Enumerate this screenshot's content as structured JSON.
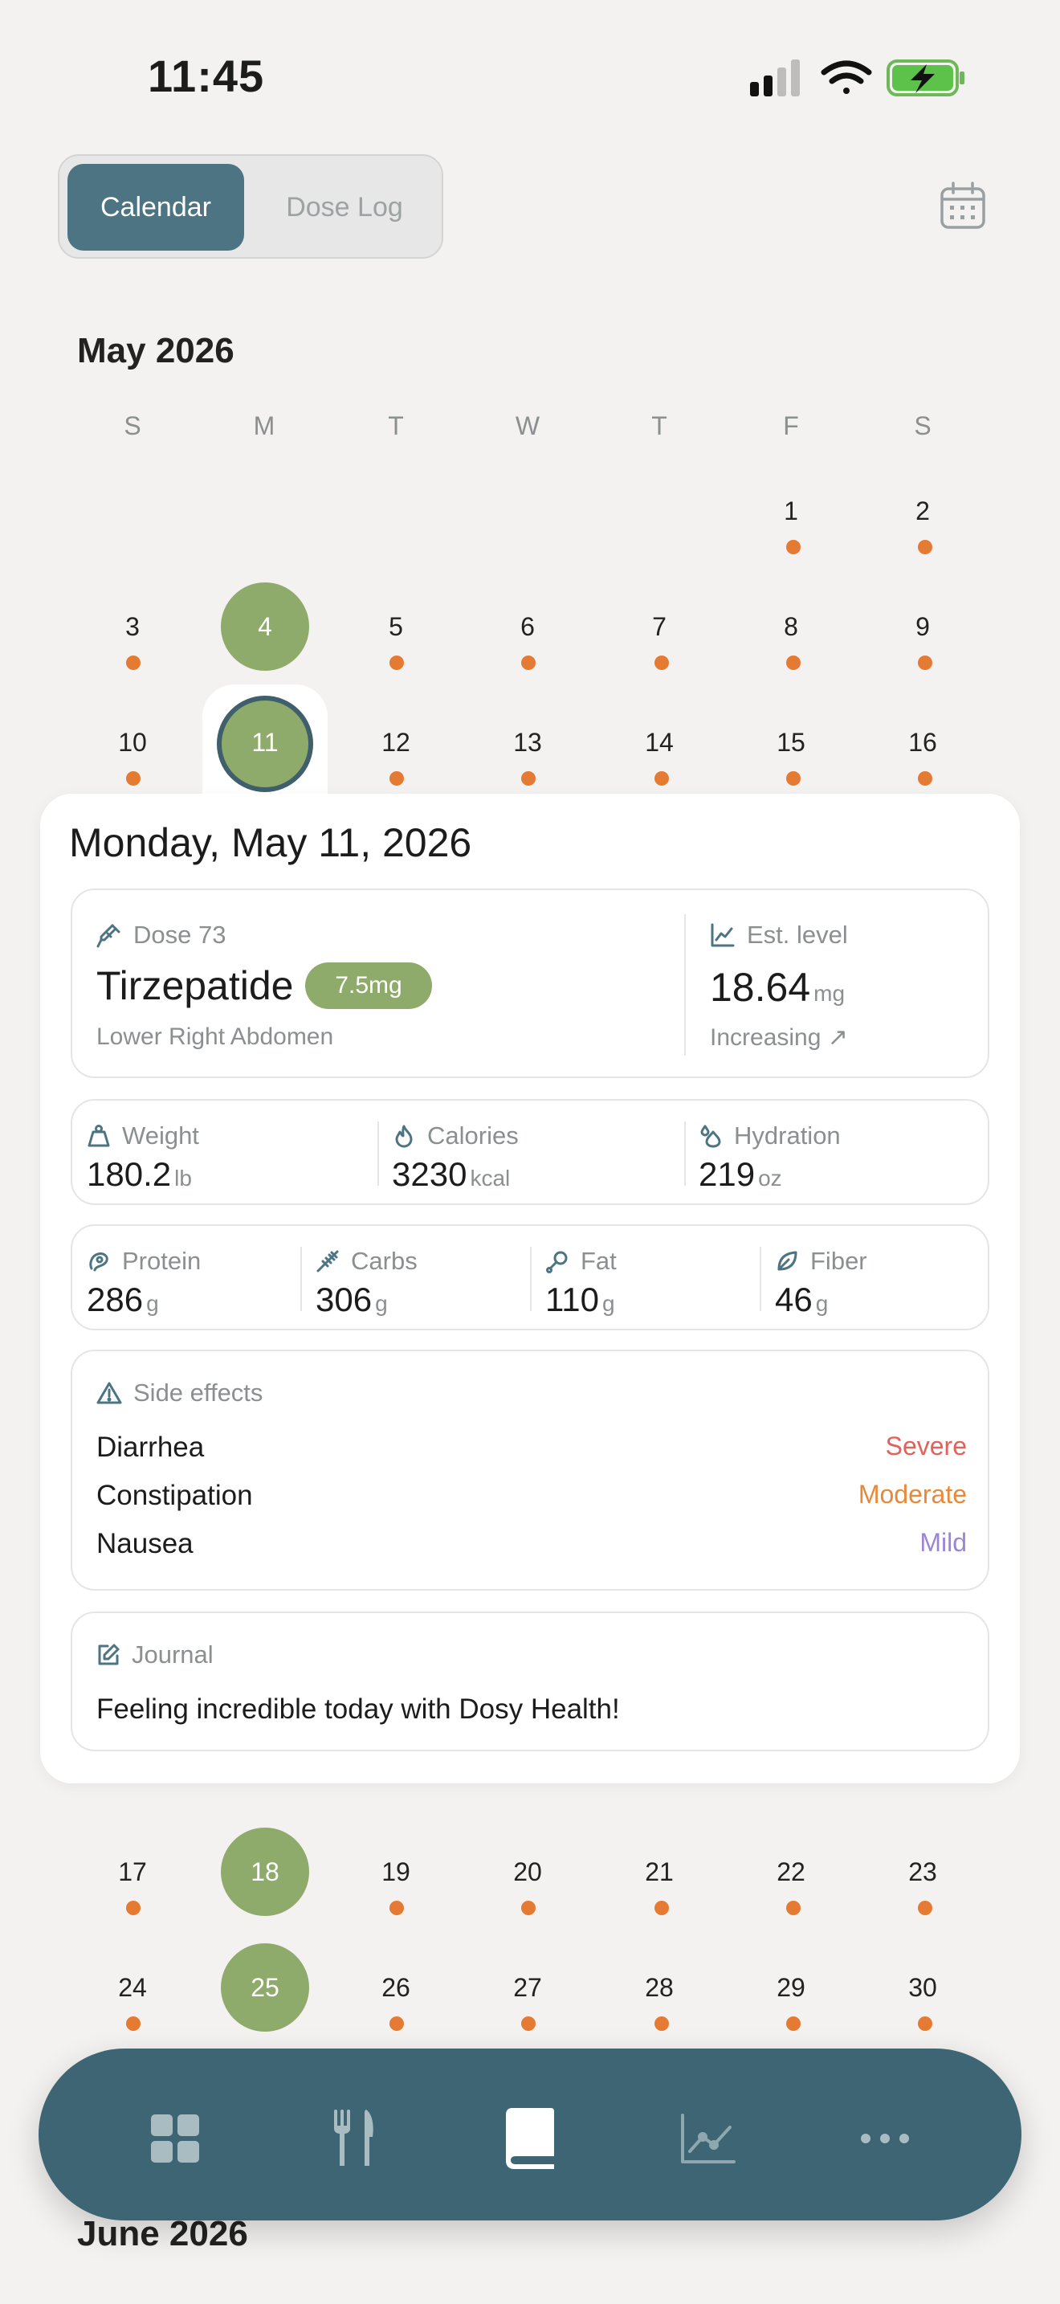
{
  "status_bar": {
    "time": "11:45"
  },
  "segmented": {
    "calendar": "Calendar",
    "dose_log": "Dose Log"
  },
  "month": {
    "title": "May 2026",
    "weekdays": [
      "S",
      "M",
      "T",
      "W",
      "T",
      "F",
      "S"
    ],
    "days": [
      "1",
      "2",
      "3",
      "4",
      "5",
      "6",
      "7",
      "8",
      "9",
      "10",
      "11",
      "12",
      "13",
      "14",
      "15",
      "16",
      "17",
      "18",
      "19",
      "20",
      "21",
      "22",
      "23",
      "24",
      "25",
      "26",
      "27",
      "28",
      "29",
      "30"
    ]
  },
  "next_month": {
    "title": "June 2026"
  },
  "detail": {
    "date": "Monday, May 11, 2026",
    "dose": {
      "label": "Dose 73",
      "medication": "Tirzepatide",
      "amount": "7.5mg",
      "site": "Lower Right Abdomen",
      "level_label": "Est. level",
      "level_value": "18.64",
      "level_unit": "mg",
      "trend": "Increasing ↗"
    },
    "metrics": [
      {
        "label": "Weight",
        "value": "180.2",
        "unit": "lb"
      },
      {
        "label": "Calories",
        "value": "3230",
        "unit": "kcal"
      },
      {
        "label": "Hydration",
        "value": "219",
        "unit": "oz"
      }
    ],
    "macros": [
      {
        "label": "Protein",
        "value": "286",
        "unit": "g"
      },
      {
        "label": "Carbs",
        "value": "306",
        "unit": "g"
      },
      {
        "label": "Fat",
        "value": "110",
        "unit": "g"
      },
      {
        "label": "Fiber",
        "value": "46",
        "unit": "g"
      }
    ],
    "side_effects": {
      "title": "Side effects",
      "items": [
        {
          "name": "Diarrhea",
          "severity": "Severe",
          "color": "#e0625a"
        },
        {
          "name": "Constipation",
          "severity": "Moderate",
          "color": "#e8893a"
        },
        {
          "name": "Nausea",
          "severity": "Mild",
          "color": "#9b86d6"
        }
      ]
    },
    "journal": {
      "title": "Journal",
      "text": "Feeling incredible today with Dosy Health!"
    }
  },
  "nav": {
    "icons": [
      "dashboard-icon",
      "fork-knife-icon",
      "book-icon",
      "chart-icon",
      "more-icon"
    ],
    "active_index": 2
  },
  "colors": {
    "accent": "#4d7482",
    "dose_day": "#8eab6b",
    "event_dot": "#e57a32",
    "nav": "#3e6574"
  }
}
